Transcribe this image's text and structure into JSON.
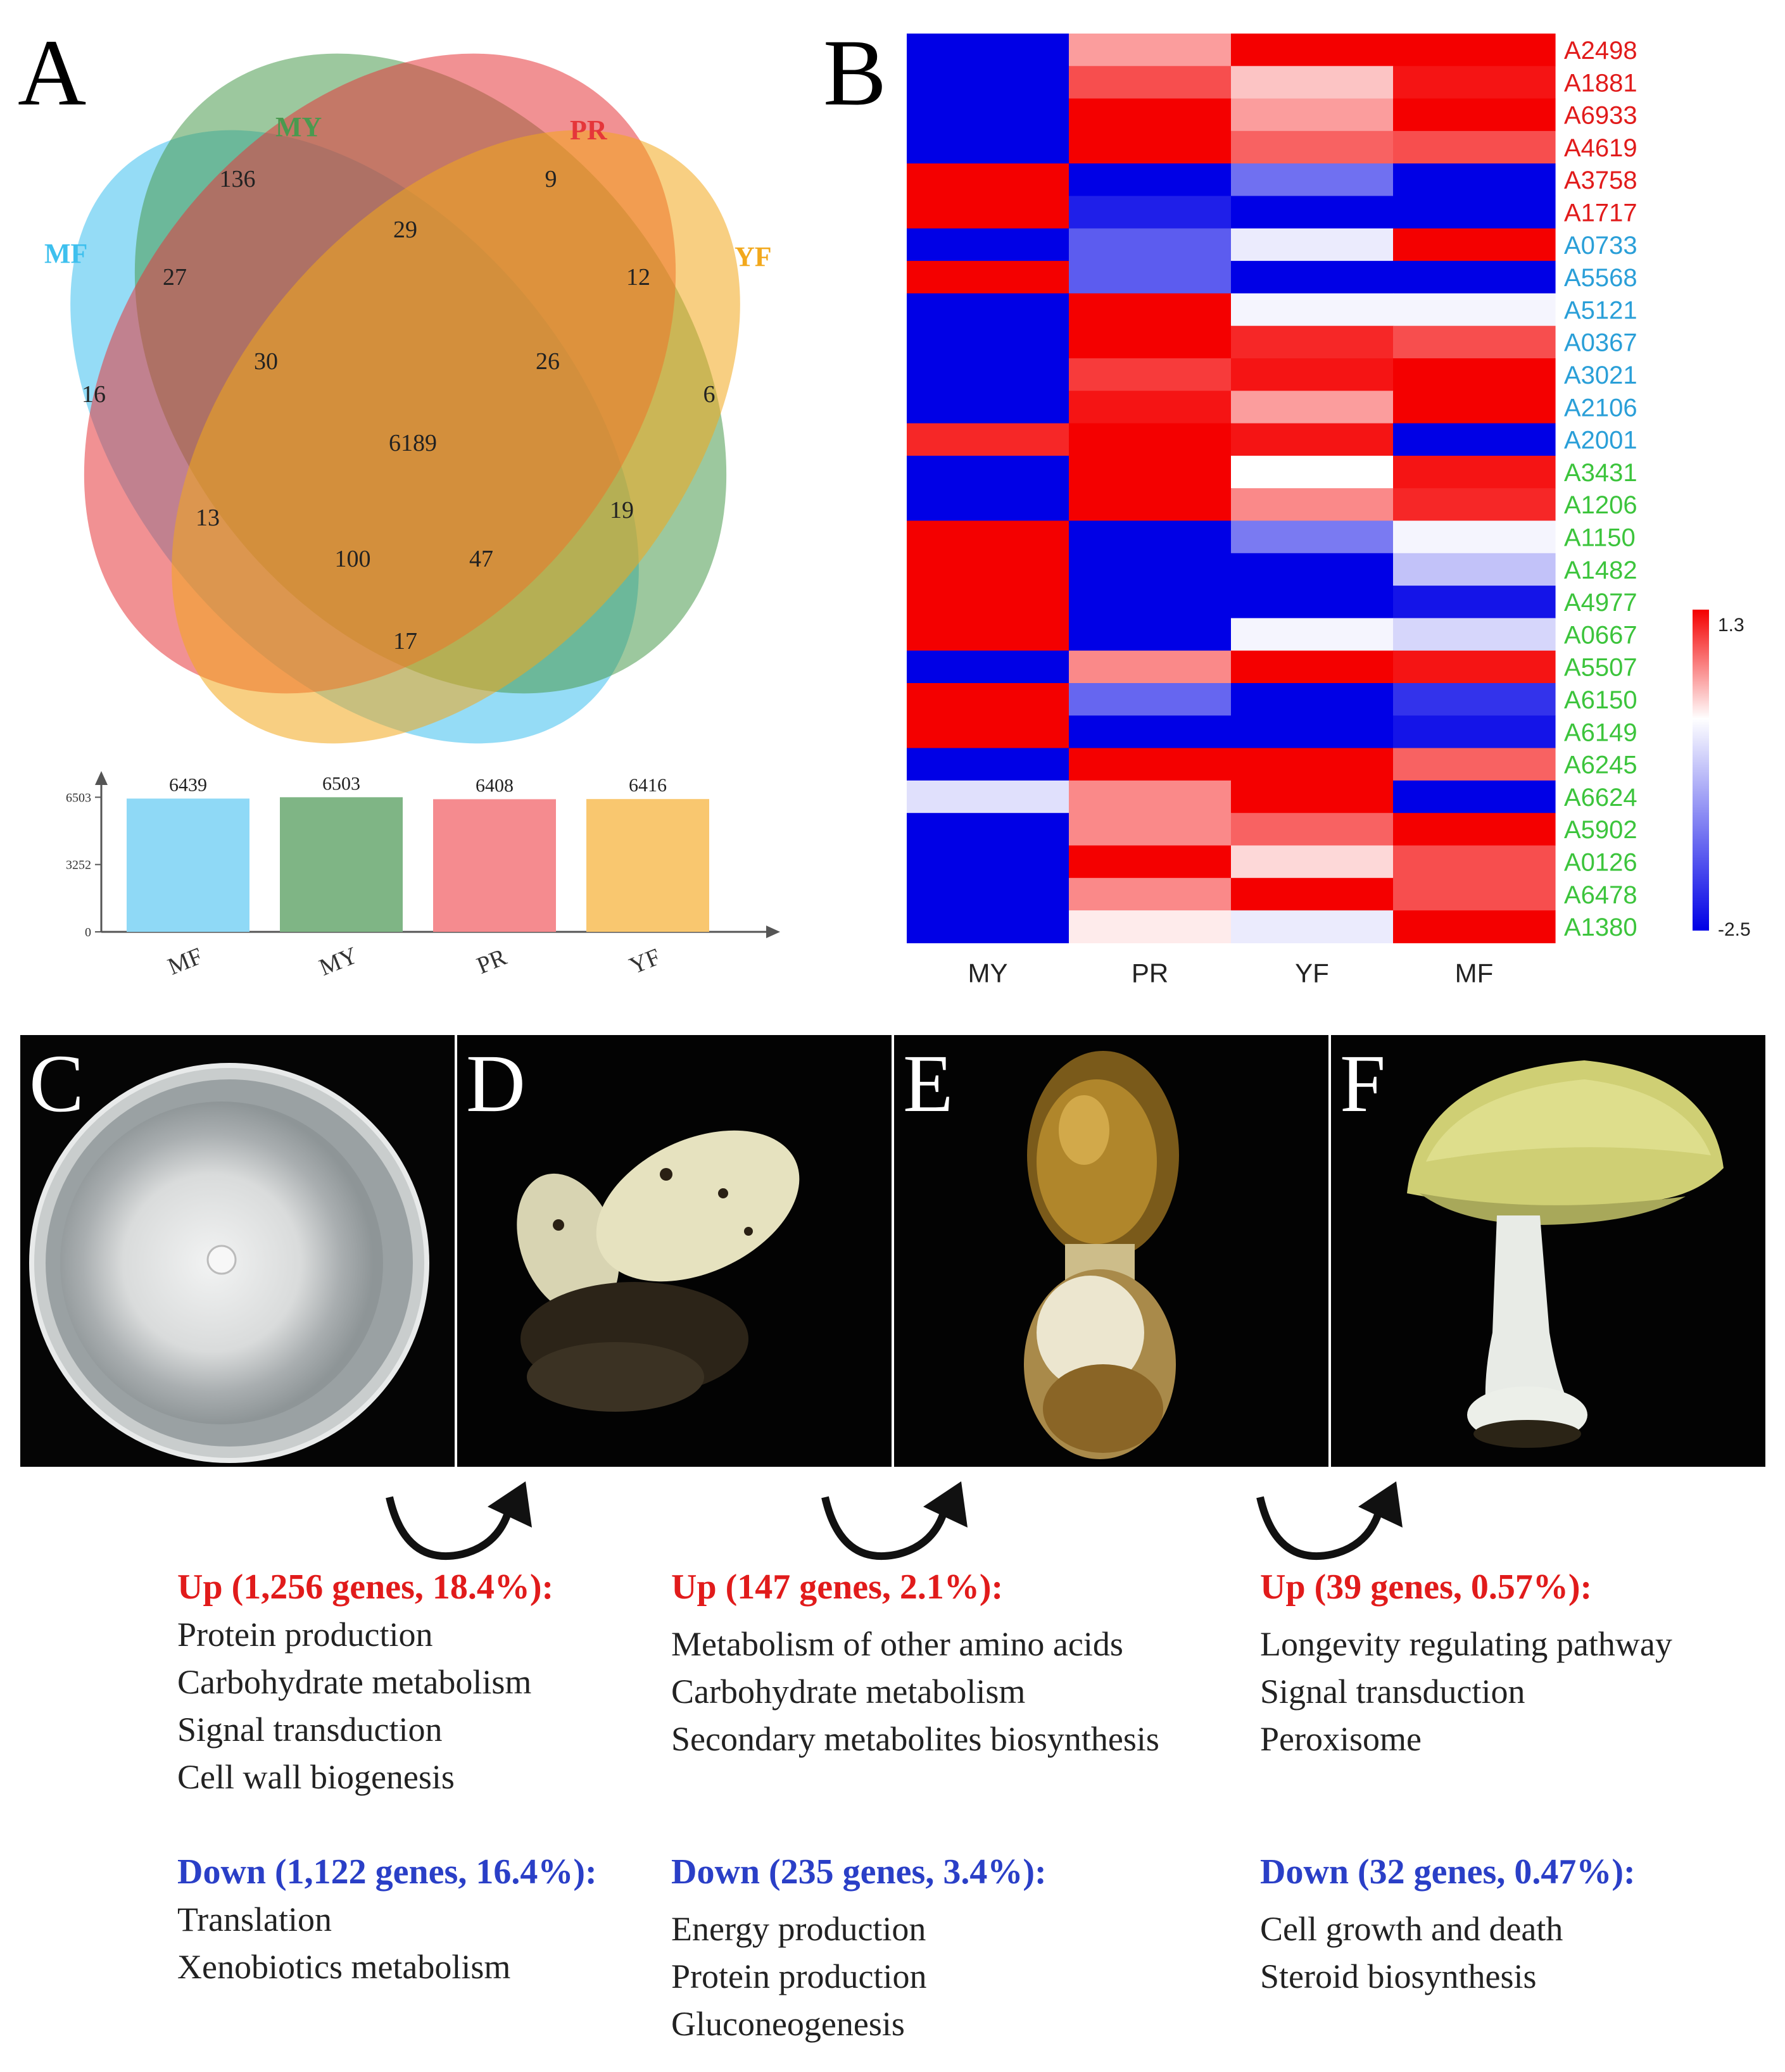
{
  "panel_letters": {
    "a": "A",
    "b": "B",
    "c": "C",
    "d": "D",
    "e": "E",
    "f": "F"
  },
  "colors": {
    "MF": "#7fd0f0",
    "MY": "#6aab6f",
    "PR": "#f47b80",
    "YF": "#f8c463",
    "up": "#e11b1b",
    "down": "#2a3fc7"
  },
  "chart_data": [
    {
      "type": "venn",
      "sets": [
        {
          "name": "MY",
          "color": "#4a9a4f"
        },
        {
          "name": "PR",
          "color": "#e5363a"
        },
        {
          "name": "MF",
          "color": "#3ec0ee"
        },
        {
          "name": "YF",
          "color": "#f2a81c"
        }
      ],
      "regions": [
        {
          "sets": [
            "MY"
          ],
          "value": "136"
        },
        {
          "sets": [
            "PR"
          ],
          "value": "9"
        },
        {
          "sets": [
            "MF"
          ],
          "value": "16"
        },
        {
          "sets": [
            "YF"
          ],
          "value": "6"
        },
        {
          "sets": [
            "MY",
            "PR"
          ],
          "value": "29"
        },
        {
          "sets": [
            "MF",
            "MY"
          ],
          "value": "27"
        },
        {
          "sets": [
            "PR",
            "YF"
          ],
          "value": "12"
        },
        {
          "sets": [
            "MF",
            "MY",
            "PR"
          ],
          "value": "30"
        },
        {
          "sets": [
            "MY",
            "PR",
            "YF"
          ],
          "value": "26"
        },
        {
          "sets": [
            "MF",
            "MY",
            "PR",
            "YF"
          ],
          "value": "6189"
        },
        {
          "sets": [
            "MF",
            "PR"
          ],
          "value": "13"
        },
        {
          "sets": [
            "MY",
            "YF"
          ],
          "value": "19"
        },
        {
          "sets": [
            "MF",
            "PR",
            "YF"
          ],
          "value": "100"
        },
        {
          "sets": [
            "MF",
            "MY",
            "YF"
          ],
          "value": "47"
        },
        {
          "sets": [
            "MF",
            "YF"
          ],
          "value": "17"
        }
      ]
    },
    {
      "type": "bar",
      "categories": [
        "MF",
        "MY",
        "PR",
        "YF"
      ],
      "values": [
        6439,
        6503,
        6408,
        6416
      ],
      "value_labels": [
        "6439",
        "6503",
        "6408",
        "6416"
      ],
      "bar_colors": [
        "#8fd9f6",
        "#7fb585",
        "#f58b8f",
        "#f9c76f"
      ],
      "ticks": [
        "6503",
        "3252",
        "0"
      ],
      "ylim": [
        0,
        7400
      ]
    },
    {
      "type": "heatmap",
      "columns": [
        "MY",
        "PR",
        "YF",
        "MF"
      ],
      "rows": [
        {
          "id": "A2498",
          "group": "red",
          "values": [
            -2.5,
            0.5,
            1.3,
            1.3
          ]
        },
        {
          "id": "A1881",
          "group": "red",
          "values": [
            -2.5,
            0.9,
            0.3,
            1.2
          ]
        },
        {
          "id": "A6933",
          "group": "red",
          "values": [
            -2.5,
            1.3,
            0.5,
            1.3
          ]
        },
        {
          "id": "A4619",
          "group": "red",
          "values": [
            -2.5,
            1.3,
            0.8,
            0.9
          ]
        },
        {
          "id": "A3758",
          "group": "red",
          "values": [
            1.3,
            -2.5,
            -1.4,
            -2.5
          ]
        },
        {
          "id": "A1717",
          "group": "red",
          "values": [
            1.3,
            -2.2,
            -2.5,
            -2.5
          ]
        },
        {
          "id": "A0733",
          "group": "blue",
          "values": [
            -2.5,
            -1.6,
            -0.2,
            1.3
          ]
        },
        {
          "id": "A5568",
          "group": "blue",
          "values": [
            1.3,
            -1.6,
            -2.5,
            -2.5
          ]
        },
        {
          "id": "A5121",
          "group": "blue",
          "values": [
            -2.5,
            1.3,
            -0.1,
            -0.1
          ]
        },
        {
          "id": "A0367",
          "group": "blue",
          "values": [
            -2.5,
            1.3,
            1.1,
            0.9
          ]
        },
        {
          "id": "A3021",
          "group": "blue",
          "values": [
            -2.5,
            1.0,
            1.2,
            1.3
          ]
        },
        {
          "id": "A2106",
          "group": "blue",
          "values": [
            -2.5,
            1.2,
            0.5,
            1.3
          ]
        },
        {
          "id": "A2001",
          "group": "blue",
          "values": [
            1.1,
            1.3,
            1.2,
            -2.5
          ]
        },
        {
          "id": "A3431",
          "group": "green",
          "values": [
            -2.5,
            1.3,
            0.0,
            1.2
          ]
        },
        {
          "id": "A1206",
          "group": "green",
          "values": [
            -2.5,
            1.3,
            0.6,
            1.1
          ]
        },
        {
          "id": "A1150",
          "group": "green",
          "values": [
            1.3,
            -2.5,
            -1.3,
            -0.1
          ]
        },
        {
          "id": "A1482",
          "group": "green",
          "values": [
            1.3,
            -2.5,
            -2.5,
            -0.6
          ]
        },
        {
          "id": "A4977",
          "group": "green",
          "values": [
            1.3,
            -2.5,
            -2.5,
            -2.3
          ]
        },
        {
          "id": "A0667",
          "group": "green",
          "values": [
            1.3,
            -2.5,
            -0.1,
            -0.4
          ]
        },
        {
          "id": "A5507",
          "group": "green",
          "values": [
            -2.5,
            0.6,
            1.3,
            1.2
          ]
        },
        {
          "id": "A6150",
          "group": "green",
          "values": [
            1.3,
            -1.5,
            -2.5,
            -2.0
          ]
        },
        {
          "id": "A6149",
          "group": "green",
          "values": [
            1.3,
            -2.5,
            -2.5,
            -2.3
          ]
        },
        {
          "id": "A6245",
          "group": "green",
          "values": [
            -2.5,
            1.3,
            1.3,
            0.8
          ]
        },
        {
          "id": "A6624",
          "group": "green",
          "values": [
            -0.3,
            0.6,
            1.3,
            -2.5
          ]
        },
        {
          "id": "A5902",
          "group": "green",
          "values": [
            -2.5,
            0.6,
            0.8,
            1.3
          ]
        },
        {
          "id": "A0126",
          "group": "green",
          "values": [
            -2.5,
            1.3,
            0.2,
            0.9
          ]
        },
        {
          "id": "A6478",
          "group": "green",
          "values": [
            -2.5,
            0.6,
            1.3,
            0.9
          ]
        },
        {
          "id": "A1380",
          "group": "green",
          "values": [
            -2.5,
            0.1,
            -0.2,
            1.3
          ]
        }
      ],
      "row_label_colors": {
        "red": "#e11b1b",
        "blue": "#2a9fd8",
        "green": "#3cc43c"
      },
      "scale": {
        "max": 1.3,
        "min": -2.5,
        "max_label": "1.3",
        "min_label": "-2.5"
      }
    }
  ],
  "transitions": [
    {
      "up_header": "Up (1,256 genes, 18.4%):",
      "up_items": [
        "Protein production",
        "Carbohydrate metabolism",
        "Signal transduction",
        "Cell wall biogenesis"
      ],
      "down_header": "Down (1,122 genes, 16.4%):",
      "down_items": [
        "Translation",
        "Xenobiotics  metabolism"
      ]
    },
    {
      "up_header": "Up (147 genes, 2.1%):",
      "up_items": [
        "Metabolism of other amino acids",
        "Carbohydrate metabolism",
        "Secondary metabolites biosynthesis"
      ],
      "down_header": "Down (235 genes, 3.4%):",
      "down_items": [
        "Energy production",
        "Protein production",
        "Gluconeogenesis"
      ]
    },
    {
      "up_header": "Up (39 genes, 0.57%):",
      "up_items": [
        "Longevity regulating pathway",
        "Signal transduction",
        "Peroxisome"
      ],
      "down_header": "Down (32 genes, 0.47%):",
      "down_items": [
        "Cell growth and death",
        "Steroid biosynthesis"
      ]
    }
  ]
}
